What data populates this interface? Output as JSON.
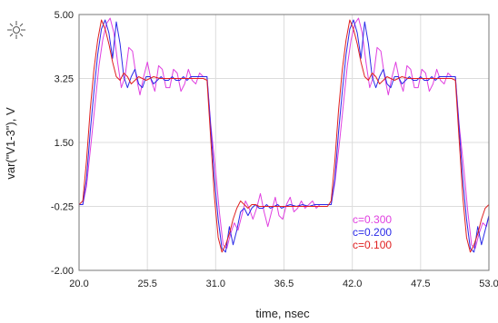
{
  "chart_data": {
    "type": "line",
    "title": "",
    "xlabel": "time, nsec",
    "ylabel": "var(\"V1-3\"), V",
    "xlim": [
      20.0,
      53.0
    ],
    "ylim": [
      -2.0,
      5.0
    ],
    "x_ticks": [
      "20.0",
      "25.5",
      "31.0",
      "36.5",
      "42.0",
      "47.5",
      "53.0"
    ],
    "y_ticks": [
      "5.00",
      "3.25",
      "1.50",
      "-0.25",
      "-2.00"
    ],
    "grid": true,
    "legend_position": "bottom-right",
    "series": [
      {
        "name": "c=0.300",
        "color": "#e040e0",
        "points": [
          [
            20,
            -0.2
          ],
          [
            20.3,
            -0.2
          ],
          [
            20.6,
            0.3
          ],
          [
            21.0,
            1.6
          ],
          [
            21.3,
            2.6
          ],
          [
            21.6,
            3.6
          ],
          [
            21.9,
            4.3
          ],
          [
            22.2,
            4.75
          ],
          [
            22.5,
            4.9
          ],
          [
            22.8,
            4.5
          ],
          [
            23.1,
            3.7
          ],
          [
            23.4,
            3.0
          ],
          [
            23.7,
            3.3
          ],
          [
            24.0,
            4.1
          ],
          [
            24.3,
            4.0
          ],
          [
            24.6,
            3.3
          ],
          [
            24.9,
            2.8
          ],
          [
            25.2,
            3.3
          ],
          [
            25.5,
            3.7
          ],
          [
            25.8,
            3.2
          ],
          [
            26.1,
            2.9
          ],
          [
            26.4,
            3.6
          ],
          [
            26.7,
            3.5
          ],
          [
            27.0,
            3.0
          ],
          [
            27.3,
            3.0
          ],
          [
            27.6,
            3.5
          ],
          [
            27.9,
            3.4
          ],
          [
            28.2,
            2.9
          ],
          [
            28.5,
            3.1
          ],
          [
            28.8,
            3.5
          ],
          [
            29.1,
            3.2
          ],
          [
            29.4,
            3.1
          ],
          [
            29.7,
            3.4
          ],
          [
            30.0,
            3.3
          ],
          [
            30.3,
            3.3
          ],
          [
            30.6,
            2.0
          ],
          [
            31.0,
            0.7
          ],
          [
            31.3,
            -0.4
          ],
          [
            31.6,
            -1.3
          ],
          [
            31.9,
            -1.4
          ],
          [
            32.2,
            -1.0
          ],
          [
            32.5,
            -0.7
          ],
          [
            32.8,
            -0.9
          ],
          [
            33.1,
            -0.5
          ],
          [
            33.4,
            -0.1
          ],
          [
            33.7,
            -0.3
          ],
          [
            34.0,
            -0.6
          ],
          [
            34.3,
            -0.3
          ],
          [
            34.6,
            0.1
          ],
          [
            34.9,
            -0.4
          ],
          [
            35.2,
            -0.8
          ],
          [
            35.5,
            -0.4
          ],
          [
            35.8,
            0.0
          ],
          [
            36.1,
            -0.5
          ],
          [
            36.4,
            -0.6
          ],
          [
            36.7,
            -0.2
          ],
          [
            37.0,
            0.0
          ],
          [
            37.3,
            -0.4
          ],
          [
            37.6,
            -0.3
          ],
          [
            37.9,
            -0.1
          ],
          [
            38.2,
            -0.3
          ],
          [
            38.5,
            -0.2
          ],
          [
            38.8,
            -0.1
          ],
          [
            39.1,
            -0.3
          ],
          [
            39.4,
            -0.2
          ],
          [
            39.7,
            -0.2
          ],
          [
            40.0,
            -0.2
          ],
          [
            40.3,
            -0.2
          ],
          [
            40.6,
            0.4
          ],
          [
            41.0,
            1.6
          ],
          [
            41.3,
            2.6
          ],
          [
            41.6,
            3.6
          ],
          [
            41.9,
            4.3
          ],
          [
            42.2,
            4.75
          ],
          [
            42.5,
            4.9
          ],
          [
            42.8,
            4.5
          ],
          [
            43.1,
            3.7
          ],
          [
            43.4,
            3.0
          ],
          [
            43.7,
            3.3
          ],
          [
            44.0,
            4.1
          ],
          [
            44.3,
            4.0
          ],
          [
            44.6,
            3.3
          ],
          [
            44.9,
            2.8
          ],
          [
            45.2,
            3.3
          ],
          [
            45.5,
            3.7
          ],
          [
            45.8,
            3.2
          ],
          [
            46.1,
            2.9
          ],
          [
            46.4,
            3.6
          ],
          [
            46.7,
            3.5
          ],
          [
            47.0,
            3.0
          ],
          [
            47.3,
            3.0
          ],
          [
            47.6,
            3.5
          ],
          [
            47.9,
            3.4
          ],
          [
            48.2,
            2.9
          ],
          [
            48.5,
            3.1
          ],
          [
            48.8,
            3.5
          ],
          [
            49.1,
            3.2
          ],
          [
            49.4,
            3.1
          ],
          [
            49.7,
            3.4
          ],
          [
            50.0,
            3.3
          ],
          [
            50.3,
            3.3
          ],
          [
            50.6,
            2.0
          ],
          [
            51.0,
            0.7
          ],
          [
            51.3,
            -0.4
          ],
          [
            51.6,
            -1.3
          ],
          [
            51.9,
            -1.4
          ],
          [
            52.2,
            -1.0
          ],
          [
            52.5,
            -0.7
          ],
          [
            52.8,
            -0.8
          ],
          [
            53.0,
            -0.5
          ]
        ]
      },
      {
        "name": "c=0.200",
        "color": "#2a2ae8",
        "points": [
          [
            20,
            -0.2
          ],
          [
            20.3,
            -0.2
          ],
          [
            20.6,
            0.5
          ],
          [
            20.9,
            1.8
          ],
          [
            21.2,
            2.9
          ],
          [
            21.5,
            3.9
          ],
          [
            21.8,
            4.6
          ],
          [
            22.1,
            4.85
          ],
          [
            22.4,
            4.5
          ],
          [
            22.7,
            3.8
          ],
          [
            23.0,
            4.8
          ],
          [
            23.3,
            4.2
          ],
          [
            23.6,
            3.3
          ],
          [
            23.9,
            3.0
          ],
          [
            24.2,
            3.3
          ],
          [
            24.5,
            3.5
          ],
          [
            24.8,
            3.1
          ],
          [
            25.1,
            3.0
          ],
          [
            25.4,
            3.3
          ],
          [
            25.7,
            3.3
          ],
          [
            26.0,
            3.1
          ],
          [
            26.3,
            3.2
          ],
          [
            26.6,
            3.3
          ],
          [
            26.9,
            3.2
          ],
          [
            27.2,
            3.2
          ],
          [
            27.5,
            3.3
          ],
          [
            27.8,
            3.2
          ],
          [
            28.1,
            3.2
          ],
          [
            28.4,
            3.3
          ],
          [
            28.7,
            3.2
          ],
          [
            29.0,
            3.3
          ],
          [
            29.3,
            3.3
          ],
          [
            29.6,
            3.3
          ],
          [
            30.0,
            3.3
          ],
          [
            30.3,
            3.3
          ],
          [
            30.6,
            1.9
          ],
          [
            30.9,
            0.5
          ],
          [
            31.2,
            -0.6
          ],
          [
            31.5,
            -1.4
          ],
          [
            31.8,
            -1.5
          ],
          [
            32.1,
            -0.8
          ],
          [
            32.4,
            -1.3
          ],
          [
            32.7,
            -0.9
          ],
          [
            33.0,
            -0.4
          ],
          [
            33.3,
            -0.3
          ],
          [
            33.6,
            -0.5
          ],
          [
            33.9,
            -0.3
          ],
          [
            34.2,
            -0.2
          ],
          [
            34.5,
            -0.3
          ],
          [
            34.8,
            -0.3
          ],
          [
            35.1,
            -0.2
          ],
          [
            35.4,
            -0.3
          ],
          [
            35.7,
            -0.25
          ],
          [
            36.0,
            -0.2
          ],
          [
            36.3,
            -0.3
          ],
          [
            36.6,
            -0.25
          ],
          [
            37.0,
            -0.2
          ],
          [
            37.5,
            -0.25
          ],
          [
            38.0,
            -0.2
          ],
          [
            38.5,
            -0.25
          ],
          [
            39.0,
            -0.2
          ],
          [
            39.5,
            -0.2
          ],
          [
            40.0,
            -0.2
          ],
          [
            40.3,
            -0.2
          ],
          [
            40.6,
            0.5
          ],
          [
            40.9,
            1.8
          ],
          [
            41.2,
            2.9
          ],
          [
            41.5,
            3.9
          ],
          [
            41.8,
            4.6
          ],
          [
            42.1,
            4.85
          ],
          [
            42.4,
            4.5
          ],
          [
            42.7,
            3.8
          ],
          [
            43.0,
            4.8
          ],
          [
            43.3,
            4.2
          ],
          [
            43.6,
            3.3
          ],
          [
            43.9,
            3.0
          ],
          [
            44.2,
            3.3
          ],
          [
            44.5,
            3.5
          ],
          [
            44.8,
            3.1
          ],
          [
            45.1,
            3.0
          ],
          [
            45.4,
            3.3
          ],
          [
            45.7,
            3.3
          ],
          [
            46.0,
            3.1
          ],
          [
            46.3,
            3.2
          ],
          [
            46.6,
            3.3
          ],
          [
            46.9,
            3.2
          ],
          [
            47.2,
            3.2
          ],
          [
            47.5,
            3.3
          ],
          [
            47.8,
            3.2
          ],
          [
            48.1,
            3.2
          ],
          [
            48.4,
            3.3
          ],
          [
            48.7,
            3.2
          ],
          [
            49.0,
            3.3
          ],
          [
            49.3,
            3.3
          ],
          [
            49.6,
            3.3
          ],
          [
            50.0,
            3.3
          ],
          [
            50.3,
            3.3
          ],
          [
            50.6,
            1.9
          ],
          [
            50.9,
            0.5
          ],
          [
            51.2,
            -0.6
          ],
          [
            51.5,
            -1.4
          ],
          [
            51.8,
            -1.5
          ],
          [
            52.1,
            -0.8
          ],
          [
            52.4,
            -1.3
          ],
          [
            52.7,
            -0.9
          ],
          [
            53.0,
            -0.5
          ]
        ]
      },
      {
        "name": "c=0.100",
        "color": "#e02020",
        "points": [
          [
            20,
            -0.2
          ],
          [
            20.3,
            -0.1
          ],
          [
            20.6,
            1.0
          ],
          [
            20.9,
            2.4
          ],
          [
            21.2,
            3.5
          ],
          [
            21.5,
            4.3
          ],
          [
            21.8,
            4.85
          ],
          [
            22.1,
            4.6
          ],
          [
            22.4,
            4.2
          ],
          [
            22.7,
            3.7
          ],
          [
            23.0,
            3.3
          ],
          [
            23.3,
            3.2
          ],
          [
            23.6,
            3.4
          ],
          [
            23.9,
            3.3
          ],
          [
            24.2,
            3.1
          ],
          [
            24.5,
            3.2
          ],
          [
            24.8,
            3.3
          ],
          [
            25.1,
            3.25
          ],
          [
            25.4,
            3.2
          ],
          [
            25.7,
            3.25
          ],
          [
            26.0,
            3.3
          ],
          [
            26.5,
            3.25
          ],
          [
            27.0,
            3.25
          ],
          [
            27.5,
            3.25
          ],
          [
            28.0,
            3.25
          ],
          [
            28.5,
            3.25
          ],
          [
            29.0,
            3.25
          ],
          [
            29.5,
            3.25
          ],
          [
            30.0,
            3.25
          ],
          [
            30.3,
            3.2
          ],
          [
            30.6,
            1.6
          ],
          [
            30.9,
            0.0
          ],
          [
            31.2,
            -1.1
          ],
          [
            31.5,
            -1.5
          ],
          [
            31.8,
            -1.3
          ],
          [
            32.1,
            -1.0
          ],
          [
            32.4,
            -0.6
          ],
          [
            32.7,
            -0.3
          ],
          [
            33.0,
            -0.1
          ],
          [
            33.3,
            -0.2
          ],
          [
            33.6,
            -0.3
          ],
          [
            33.9,
            -0.2
          ],
          [
            34.2,
            -0.2
          ],
          [
            34.5,
            -0.25
          ],
          [
            35.0,
            -0.25
          ],
          [
            35.5,
            -0.25
          ],
          [
            36.0,
            -0.25
          ],
          [
            36.5,
            -0.25
          ],
          [
            37.0,
            -0.25
          ],
          [
            37.5,
            -0.25
          ],
          [
            38.0,
            -0.25
          ],
          [
            38.5,
            -0.25
          ],
          [
            39.0,
            -0.25
          ],
          [
            39.5,
            -0.25
          ],
          [
            40.0,
            -0.25
          ],
          [
            40.3,
            -0.1
          ],
          [
            40.6,
            1.0
          ],
          [
            40.9,
            2.4
          ],
          [
            41.2,
            3.5
          ],
          [
            41.5,
            4.3
          ],
          [
            41.8,
            4.85
          ],
          [
            42.1,
            4.6
          ],
          [
            42.4,
            4.2
          ],
          [
            42.7,
            3.7
          ],
          [
            43.0,
            3.3
          ],
          [
            43.3,
            3.2
          ],
          [
            43.6,
            3.4
          ],
          [
            43.9,
            3.3
          ],
          [
            44.2,
            3.1
          ],
          [
            44.5,
            3.2
          ],
          [
            44.8,
            3.3
          ],
          [
            45.1,
            3.25
          ],
          [
            45.4,
            3.2
          ],
          [
            45.7,
            3.25
          ],
          [
            46.0,
            3.3
          ],
          [
            46.5,
            3.25
          ],
          [
            47.0,
            3.25
          ],
          [
            47.5,
            3.25
          ],
          [
            48.0,
            3.25
          ],
          [
            48.5,
            3.25
          ],
          [
            49.0,
            3.25
          ],
          [
            49.5,
            3.25
          ],
          [
            50.0,
            3.25
          ],
          [
            50.3,
            3.2
          ],
          [
            50.6,
            1.6
          ],
          [
            50.9,
            0.0
          ],
          [
            51.2,
            -1.1
          ],
          [
            51.5,
            -1.5
          ],
          [
            51.8,
            -1.3
          ],
          [
            52.1,
            -1.0
          ],
          [
            52.4,
            -0.6
          ],
          [
            52.7,
            -0.3
          ],
          [
            53.0,
            -0.2
          ]
        ]
      }
    ]
  }
}
